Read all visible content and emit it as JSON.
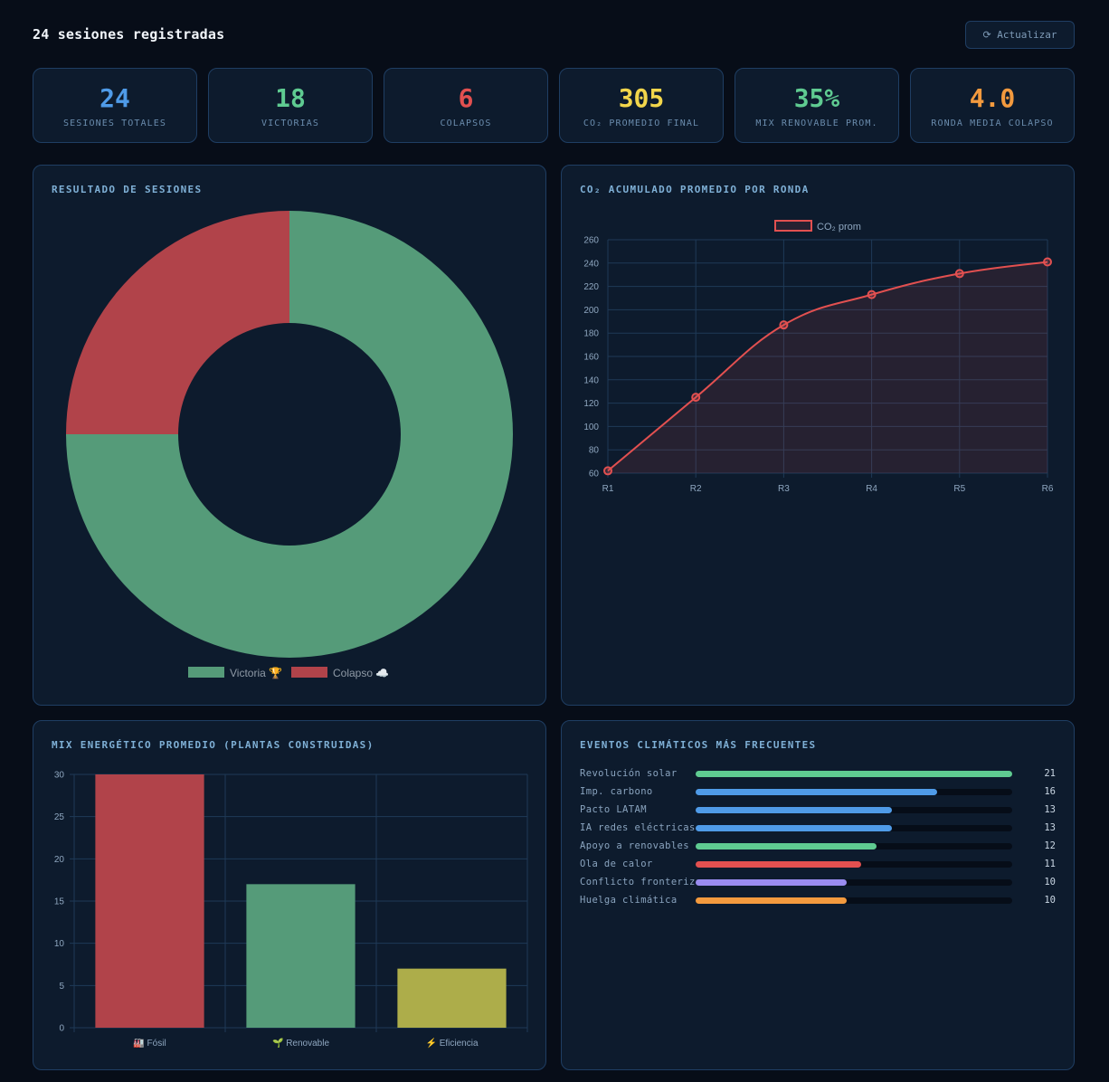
{
  "header": {
    "title": "24 sesiones registradas",
    "refresh_label": "⟳ Actualizar"
  },
  "stats": [
    {
      "value": "24",
      "label": "Sesiones totales",
      "color": "#4f9be8"
    },
    {
      "value": "18",
      "label": "Victorias",
      "color": "#5fcb91"
    },
    {
      "value": "6",
      "label": "Colapsos",
      "color": "#e25050"
    },
    {
      "value": "305",
      "label": "CO₂ promedio final",
      "color": "#f2d64b"
    },
    {
      "value": "35%",
      "label": "Mix renovable prom.",
      "color": "#5fcb91"
    },
    {
      "value": "4.0",
      "label": "Ronda media colapso",
      "color": "#f39a3e"
    }
  ],
  "panels": {
    "results_title": "Resultado de sesiones",
    "co2_title": "CO₂ acumulado promedio por ronda",
    "mix_title": "Mix energético promedio (plantas construidas)",
    "events_title": "Eventos climáticos más frecuentes"
  },
  "chart_data": [
    {
      "type": "pie",
      "title": "Resultado de sesiones",
      "categories": [
        "Victoria 🏆",
        "Colapso ☁️"
      ],
      "values": [
        18,
        6
      ],
      "colors": [
        "#559b79",
        "#b1434a"
      ],
      "legend": "bottom"
    },
    {
      "type": "line",
      "title": "CO₂ acumulado promedio por ronda",
      "categories": [
        "R1",
        "R2",
        "R3",
        "R4",
        "R5",
        "R6"
      ],
      "series": [
        {
          "name": "CO₂ prom",
          "values": [
            62,
            125,
            187,
            213,
            231,
            241
          ],
          "color": "#e25050"
        }
      ],
      "ylim": [
        60,
        260
      ],
      "yticks": [
        60,
        80,
        100,
        120,
        140,
        160,
        180,
        200,
        220,
        240,
        260
      ],
      "grid": true,
      "legend": "top"
    },
    {
      "type": "bar",
      "title": "Mix energético promedio (plantas construidas)",
      "categories": [
        "🏭 Fósil",
        "🌱 Renovable",
        "⚡ Eficiencia"
      ],
      "values": [
        30,
        17,
        7
      ],
      "colors": [
        "#b1434a",
        "#559b79",
        "#adad4a"
      ],
      "ylim": [
        0,
        30
      ],
      "yticks": [
        0,
        5,
        10,
        15,
        20,
        25,
        30
      ],
      "grid": true
    },
    {
      "type": "bar",
      "title": "Eventos climáticos más frecuentes",
      "orientation": "horizontal",
      "categories": [
        "Revolución solar",
        "Imp. carbono",
        "Pacto LATAM",
        "IA redes eléctricas",
        "Apoyo a renovables",
        "Ola de calor",
        "Conflicto fronterizo",
        "Huelga climática"
      ],
      "values": [
        21,
        16,
        13,
        13,
        12,
        11,
        10,
        10
      ],
      "colors": [
        "#5fcb91",
        "#4f9be8",
        "#4f9be8",
        "#4f9be8",
        "#5fcb91",
        "#e25050",
        "#9a8cf0",
        "#f39a3e"
      ]
    }
  ]
}
